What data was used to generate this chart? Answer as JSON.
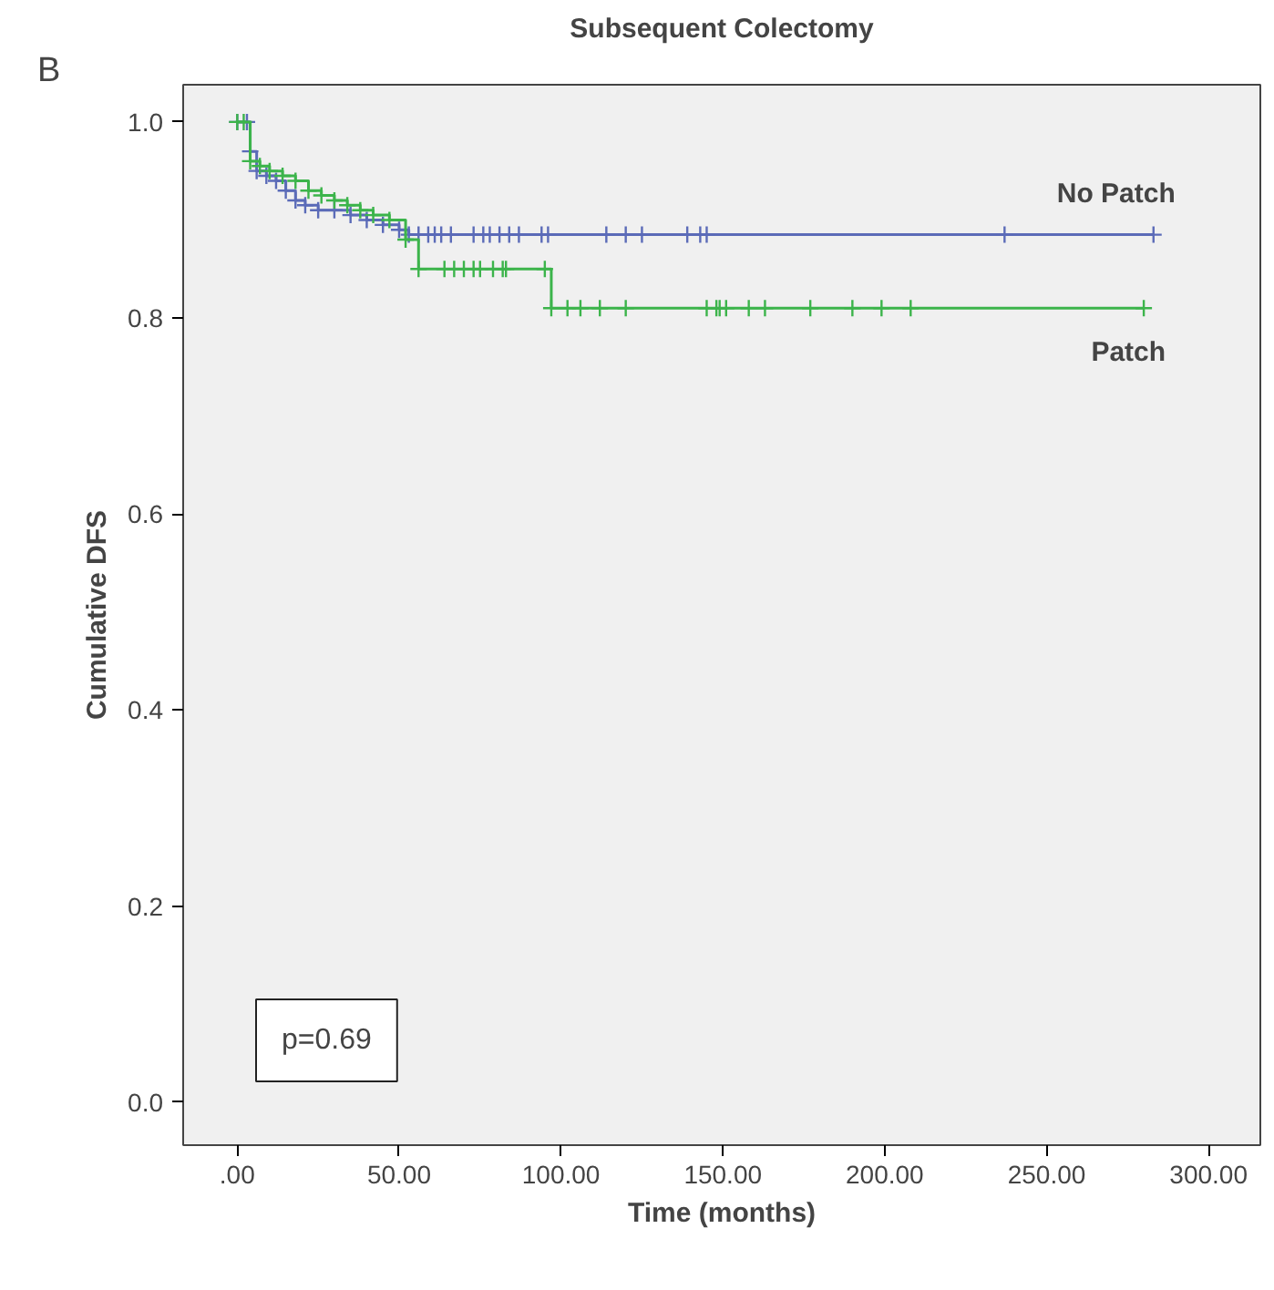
{
  "chart_data": {
    "type": "step",
    "title": "Subsequent Colectomy",
    "xlabel": "Time (months)",
    "ylabel": "Cumulative DFS",
    "annotations": [
      "B",
      "p=0.69"
    ],
    "xlim": [
      -16.7,
      316
    ],
    "ylim": [
      -0.044,
      1.038
    ],
    "xticks": [
      {
        "value": 0,
        "label": ".00"
      },
      {
        "value": 50,
        "label": "50.00"
      },
      {
        "value": 100,
        "label": "100.00"
      },
      {
        "value": 150,
        "label": "150.00"
      },
      {
        "value": 200,
        "label": "200.00"
      },
      {
        "value": 250,
        "label": "250.00"
      },
      {
        "value": 300,
        "label": "300.00"
      }
    ],
    "yticks": [
      {
        "value": 0,
        "label": "0.0"
      },
      {
        "value": 0.2,
        "label": "0.2"
      },
      {
        "value": 0.4,
        "label": "0.4"
      },
      {
        "value": 0.6,
        "label": "0.6"
      },
      {
        "value": 0.8,
        "label": "0.8"
      },
      {
        "value": 1,
        "label": "1.0"
      }
    ],
    "grid": false,
    "legend": false,
    "marker": "cross",
    "line_style": "solid",
    "series": [
      {
        "name": "No Patch",
        "color": "#5b6bb8",
        "x": [
          0,
          3,
          4,
          6,
          9,
          12,
          15,
          18,
          21,
          25,
          30,
          35,
          40,
          45,
          50,
          53,
          56,
          59,
          61,
          63,
          66,
          73,
          76,
          78,
          81,
          84,
          87,
          94,
          96,
          114,
          120,
          125,
          139,
          143,
          145,
          237,
          283
        ],
        "values": [
          1.0,
          1.0,
          0.97,
          0.95,
          0.945,
          0.94,
          0.93,
          0.92,
          0.915,
          0.91,
          0.91,
          0.905,
          0.9,
          0.895,
          0.89,
          0.885,
          0.885,
          0.885,
          0.885,
          0.885,
          0.885,
          0.885,
          0.885,
          0.885,
          0.885,
          0.885,
          0.885,
          0.885,
          0.885,
          0.885,
          0.885,
          0.885,
          0.885,
          0.885,
          0.885,
          0.885,
          0.885
        ]
      },
      {
        "name": "Patch",
        "color": "#3cb44b",
        "x": [
          0,
          2,
          4,
          7,
          10,
          14,
          18,
          22,
          26,
          30,
          34,
          38,
          42,
          47,
          52,
          56,
          64,
          67,
          70,
          73,
          75,
          79,
          82,
          83,
          95,
          97,
          102,
          106,
          112,
          120,
          145,
          148,
          149,
          151,
          158,
          163,
          177,
          190,
          199,
          208,
          280
        ],
        "values": [
          1.0,
          1.0,
          0.96,
          0.955,
          0.95,
          0.945,
          0.94,
          0.93,
          0.925,
          0.92,
          0.915,
          0.91,
          0.905,
          0.9,
          0.88,
          0.85,
          0.85,
          0.85,
          0.85,
          0.85,
          0.85,
          0.85,
          0.85,
          0.85,
          0.85,
          0.81,
          0.81,
          0.81,
          0.81,
          0.81,
          0.81,
          0.81,
          0.81,
          0.81,
          0.81,
          0.81,
          0.81,
          0.81,
          0.81,
          0.81,
          0.81
        ]
      }
    ]
  }
}
